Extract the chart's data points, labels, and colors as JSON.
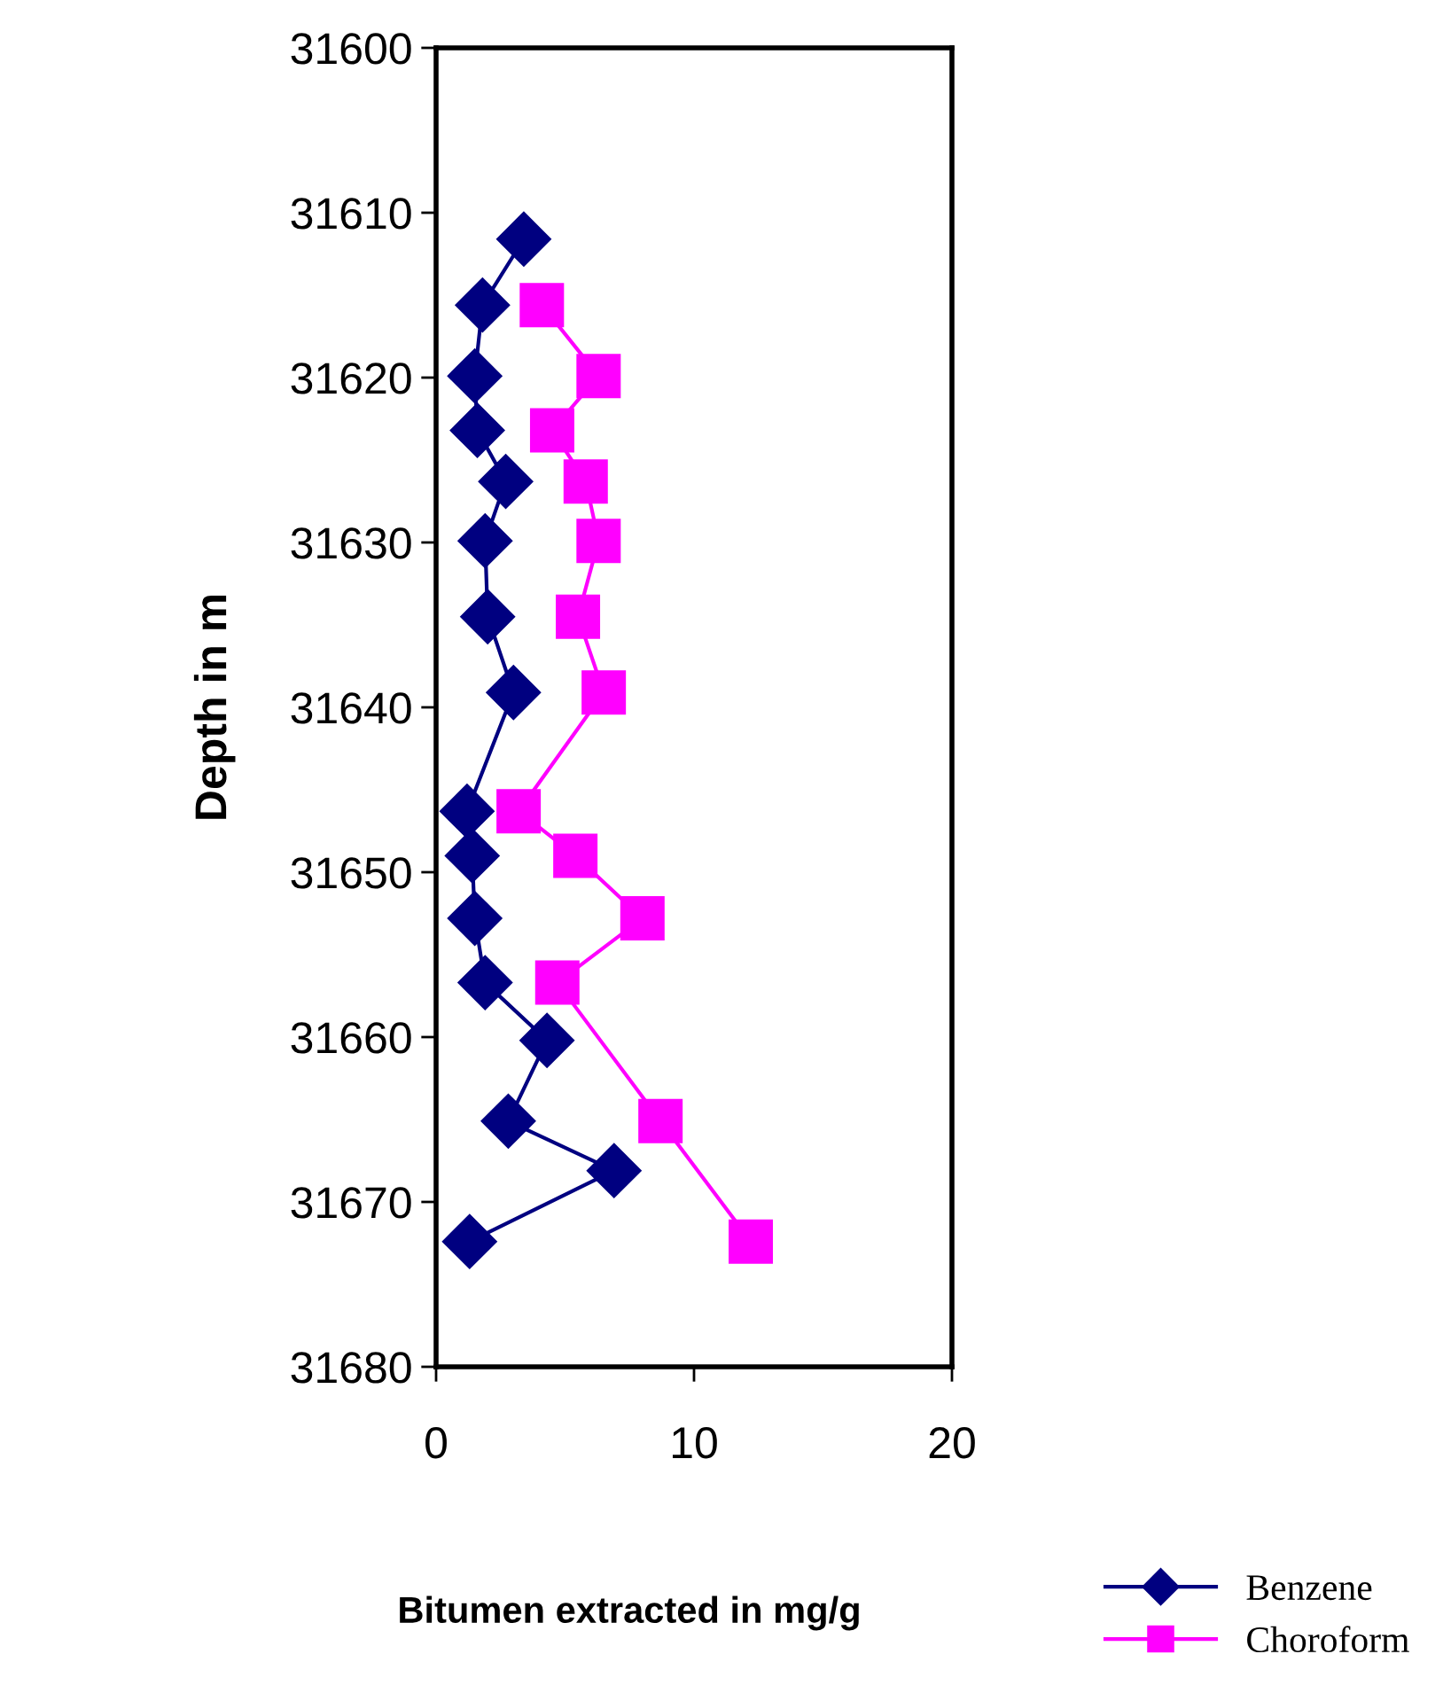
{
  "chart_data": {
    "type": "line",
    "xlabel": "Bitumen extracted in mg/g",
    "ylabel": "Depth in m",
    "xlim": [
      0,
      20
    ],
    "xticks": [
      0,
      10,
      20
    ],
    "ylim": [
      31680,
      31600
    ],
    "yticks": [
      31600,
      31610,
      31620,
      31630,
      31640,
      31650,
      31660,
      31670,
      31680
    ],
    "grid": false,
    "legend": "bottom right",
    "line_style": "solid",
    "series": [
      {
        "name": "Benzene",
        "color": "#000080",
        "marker": "diamond",
        "x": [
          3.4,
          1.8,
          1.5,
          1.6,
          2.7,
          1.9,
          2.0,
          3.0,
          1.2,
          1.4,
          1.5,
          1.9,
          4.3,
          2.8,
          6.9,
          1.3
        ],
        "values": [
          31611.6,
          31615.6,
          31619.9,
          31623.2,
          31626.3,
          31629.9,
          31634.5,
          31639.1,
          31646.3,
          31649.0,
          31652.8,
          31656.7,
          31660.2,
          31665.1,
          31668.1,
          31672.4
        ]
      },
      {
        "name": "Choroform",
        "color": "#ff00ff",
        "marker": "square",
        "x": [
          4.1,
          6.3,
          4.5,
          5.8,
          6.3,
          5.5,
          6.5,
          3.2,
          5.4,
          8.0,
          4.7,
          8.7,
          12.2
        ],
        "values": [
          31615.6,
          31619.9,
          31623.2,
          31626.3,
          31629.9,
          31634.5,
          31639.1,
          31646.3,
          31649.0,
          31652.8,
          31656.7,
          31665.1,
          31672.4
        ]
      }
    ]
  }
}
